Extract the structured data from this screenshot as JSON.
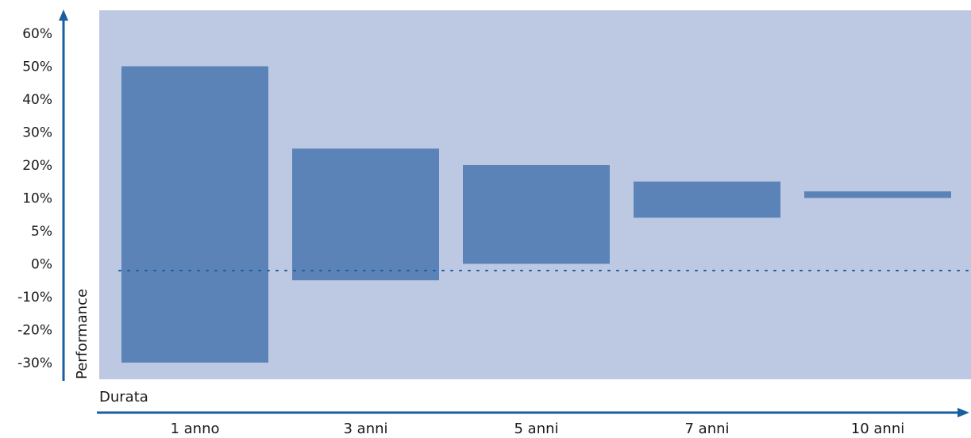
{
  "chart_data": {
    "type": "bar",
    "subtype": "floating-range",
    "categories": [
      "1 anno",
      "3 anni",
      "5 anni",
      "7 anni",
      "10 anni"
    ],
    "ranges": [
      {
        "low": -30,
        "high": 50
      },
      {
        "low": -5,
        "high": 25
      },
      {
        "low": 0,
        "high": 20
      },
      {
        "low": 7,
        "high": 15
      },
      {
        "low": 10,
        "high": 12
      }
    ],
    "y_ticks": [
      {
        "label": "-30%",
        "value": -30
      },
      {
        "label": "-20%",
        "value": -20
      },
      {
        "label": "-10%",
        "value": -10
      },
      {
        "label": "0%",
        "value": 0
      },
      {
        "label": "5%",
        "value": 5
      },
      {
        "label": "10%",
        "value": 10
      },
      {
        "label": "20%",
        "value": 20
      },
      {
        "label": "30%",
        "value": 30
      },
      {
        "label": "40%",
        "value": 40
      },
      {
        "label": "50%",
        "value": 50
      },
      {
        "label": "60%",
        "value": 60
      }
    ],
    "xlabel": "Durata",
    "ylabel": "Performance",
    "reference_line": {
      "value": 0,
      "style": "dotted"
    },
    "grid": false,
    "legend": "none"
  },
  "colors": {
    "plot_background": "#bdc9e3",
    "bar_fill": "#5b83b8",
    "axis": "#1a5ea0",
    "reference_line": "#1a5ea0",
    "text": "#1a1a1a"
  }
}
